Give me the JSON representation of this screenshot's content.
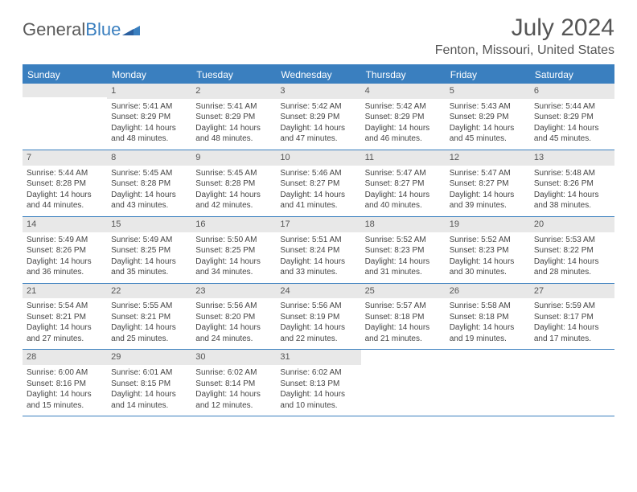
{
  "brand": {
    "part1": "General",
    "part2": "Blue"
  },
  "title": "July 2024",
  "location": "Fenton, Missouri, United States",
  "colors": {
    "header_bg": "#3a7fbf",
    "daynum_bg": "#e8e8e8",
    "text": "#444444",
    "title_text": "#555555"
  },
  "dayHeaders": [
    "Sunday",
    "Monday",
    "Tuesday",
    "Wednesday",
    "Thursday",
    "Friday",
    "Saturday"
  ],
  "leadingBlanks": 1,
  "days": [
    {
      "n": "1",
      "sunrise": "5:41 AM",
      "sunset": "8:29 PM",
      "dl": "14 hours and 48 minutes."
    },
    {
      "n": "2",
      "sunrise": "5:41 AM",
      "sunset": "8:29 PM",
      "dl": "14 hours and 48 minutes."
    },
    {
      "n": "3",
      "sunrise": "5:42 AM",
      "sunset": "8:29 PM",
      "dl": "14 hours and 47 minutes."
    },
    {
      "n": "4",
      "sunrise": "5:42 AM",
      "sunset": "8:29 PM",
      "dl": "14 hours and 46 minutes."
    },
    {
      "n": "5",
      "sunrise": "5:43 AM",
      "sunset": "8:29 PM",
      "dl": "14 hours and 45 minutes."
    },
    {
      "n": "6",
      "sunrise": "5:44 AM",
      "sunset": "8:29 PM",
      "dl": "14 hours and 45 minutes."
    },
    {
      "n": "7",
      "sunrise": "5:44 AM",
      "sunset": "8:28 PM",
      "dl": "14 hours and 44 minutes."
    },
    {
      "n": "8",
      "sunrise": "5:45 AM",
      "sunset": "8:28 PM",
      "dl": "14 hours and 43 minutes."
    },
    {
      "n": "9",
      "sunrise": "5:45 AM",
      "sunset": "8:28 PM",
      "dl": "14 hours and 42 minutes."
    },
    {
      "n": "10",
      "sunrise": "5:46 AM",
      "sunset": "8:27 PM",
      "dl": "14 hours and 41 minutes."
    },
    {
      "n": "11",
      "sunrise": "5:47 AM",
      "sunset": "8:27 PM",
      "dl": "14 hours and 40 minutes."
    },
    {
      "n": "12",
      "sunrise": "5:47 AM",
      "sunset": "8:27 PM",
      "dl": "14 hours and 39 minutes."
    },
    {
      "n": "13",
      "sunrise": "5:48 AM",
      "sunset": "8:26 PM",
      "dl": "14 hours and 38 minutes."
    },
    {
      "n": "14",
      "sunrise": "5:49 AM",
      "sunset": "8:26 PM",
      "dl": "14 hours and 36 minutes."
    },
    {
      "n": "15",
      "sunrise": "5:49 AM",
      "sunset": "8:25 PM",
      "dl": "14 hours and 35 minutes."
    },
    {
      "n": "16",
      "sunrise": "5:50 AM",
      "sunset": "8:25 PM",
      "dl": "14 hours and 34 minutes."
    },
    {
      "n": "17",
      "sunrise": "5:51 AM",
      "sunset": "8:24 PM",
      "dl": "14 hours and 33 minutes."
    },
    {
      "n": "18",
      "sunrise": "5:52 AM",
      "sunset": "8:23 PM",
      "dl": "14 hours and 31 minutes."
    },
    {
      "n": "19",
      "sunrise": "5:52 AM",
      "sunset": "8:23 PM",
      "dl": "14 hours and 30 minutes."
    },
    {
      "n": "20",
      "sunrise": "5:53 AM",
      "sunset": "8:22 PM",
      "dl": "14 hours and 28 minutes."
    },
    {
      "n": "21",
      "sunrise": "5:54 AM",
      "sunset": "8:21 PM",
      "dl": "14 hours and 27 minutes."
    },
    {
      "n": "22",
      "sunrise": "5:55 AM",
      "sunset": "8:21 PM",
      "dl": "14 hours and 25 minutes."
    },
    {
      "n": "23",
      "sunrise": "5:56 AM",
      "sunset": "8:20 PM",
      "dl": "14 hours and 24 minutes."
    },
    {
      "n": "24",
      "sunrise": "5:56 AM",
      "sunset": "8:19 PM",
      "dl": "14 hours and 22 minutes."
    },
    {
      "n": "25",
      "sunrise": "5:57 AM",
      "sunset": "8:18 PM",
      "dl": "14 hours and 21 minutes."
    },
    {
      "n": "26",
      "sunrise": "5:58 AM",
      "sunset": "8:18 PM",
      "dl": "14 hours and 19 minutes."
    },
    {
      "n": "27",
      "sunrise": "5:59 AM",
      "sunset": "8:17 PM",
      "dl": "14 hours and 17 minutes."
    },
    {
      "n": "28",
      "sunrise": "6:00 AM",
      "sunset": "8:16 PM",
      "dl": "14 hours and 15 minutes."
    },
    {
      "n": "29",
      "sunrise": "6:01 AM",
      "sunset": "8:15 PM",
      "dl": "14 hours and 14 minutes."
    },
    {
      "n": "30",
      "sunrise": "6:02 AM",
      "sunset": "8:14 PM",
      "dl": "14 hours and 12 minutes."
    },
    {
      "n": "31",
      "sunrise": "6:02 AM",
      "sunset": "8:13 PM",
      "dl": "14 hours and 10 minutes."
    }
  ],
  "labels": {
    "sunrise": "Sunrise:",
    "sunset": "Sunset:",
    "daylight": "Daylight:"
  }
}
